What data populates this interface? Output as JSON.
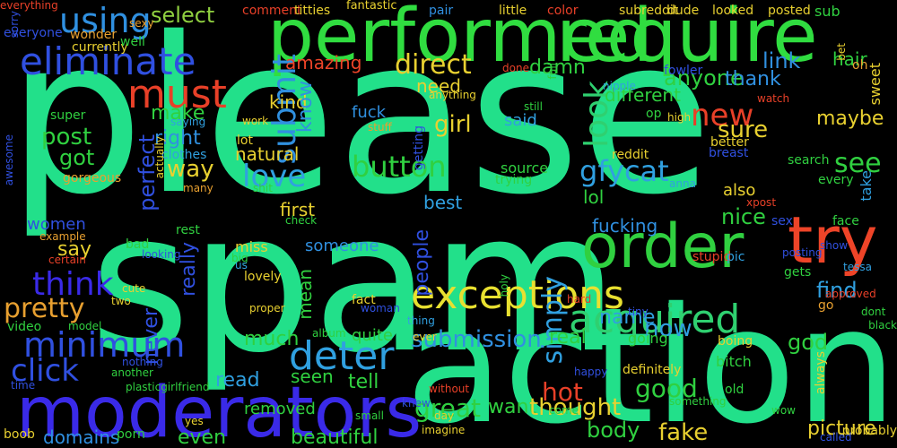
{
  "words": [
    {
      "t": "please",
      "c": "#22e08a"
    },
    {
      "t": "spam",
      "c": "#22e08a"
    },
    {
      "t": "action",
      "c": "#22e08a"
    },
    {
      "t": "performed",
      "c": "#30dd40"
    },
    {
      "t": "require",
      "c": "#30dd40"
    },
    {
      "t": "moderators",
      "c": "#3a2ae8"
    },
    {
      "t": "order",
      "c": "#30d040"
    },
    {
      "t": "try",
      "c": "#ee4428"
    },
    {
      "t": "exceptions",
      "c": "#e8e030"
    },
    {
      "t": "acquired",
      "c": "#2fd070"
    },
    {
      "t": "eliminate",
      "c": "#3050e0"
    },
    {
      "t": "using",
      "c": "#3090e0"
    },
    {
      "t": "must",
      "c": "#e84028"
    },
    {
      "t": "minimum",
      "c": "#3050e0"
    },
    {
      "t": "deter",
      "c": "#30a0e0"
    },
    {
      "t": "submit",
      "c": "#3090e0"
    },
    {
      "t": "look",
      "c": "#2fd070"
    },
    {
      "t": "button",
      "c": "#30d040"
    },
    {
      "t": "direct",
      "c": "#e8d030"
    },
    {
      "t": "love",
      "c": "#30a0e0"
    },
    {
      "t": "new",
      "c": "#e84028"
    },
    {
      "t": "see",
      "c": "#30d040"
    },
    {
      "t": "gfycat",
      "c": "#30a0e0"
    },
    {
      "t": "think",
      "c": "#3a2ae8"
    },
    {
      "t": "click",
      "c": "#3050e0"
    },
    {
      "t": "pretty",
      "c": "#e8a030"
    },
    {
      "t": "simply",
      "c": "#30a0e0"
    },
    {
      "t": "submission",
      "c": "#3090e0"
    },
    {
      "t": "select",
      "c": "#90d040"
    },
    {
      "t": "amazing",
      "c": "#ee4428"
    },
    {
      "t": "damn",
      "c": "#30d040"
    },
    {
      "t": "anyone",
      "c": "#30d040"
    },
    {
      "t": "link",
      "c": "#3090e0"
    },
    {
      "t": "thank",
      "c": "#3090e0"
    },
    {
      "t": "kind",
      "c": "#e8d030"
    },
    {
      "t": "know",
      "c": "#3090e0"
    },
    {
      "t": "need",
      "c": "#e8d030"
    },
    {
      "t": "girl",
      "c": "#e8d030"
    },
    {
      "t": "said",
      "c": "#30a0e0"
    },
    {
      "t": "fuck",
      "c": "#3090e0"
    },
    {
      "t": "sure",
      "c": "#e8d030"
    },
    {
      "t": "maybe",
      "c": "#e8d030"
    },
    {
      "t": "post",
      "c": "#30d040"
    },
    {
      "t": "make",
      "c": "#30d040"
    },
    {
      "t": "right",
      "c": "#3090e0"
    },
    {
      "t": "got",
      "c": "#30d040"
    },
    {
      "t": "way",
      "c": "#e8d030"
    },
    {
      "t": "perfect",
      "c": "#3050e0"
    },
    {
      "t": "natural",
      "c": "#e8d030"
    },
    {
      "t": "source",
      "c": "#30d040"
    },
    {
      "t": "trying",
      "c": "#30d040"
    },
    {
      "t": "also",
      "c": "#e8d030"
    },
    {
      "t": "nice",
      "c": "#30d040"
    },
    {
      "t": "lol",
      "c": "#30d040"
    },
    {
      "t": "best",
      "c": "#30a0e0"
    },
    {
      "t": "first",
      "c": "#e8d030"
    },
    {
      "t": "fucking",
      "c": "#3090e0"
    },
    {
      "t": "find",
      "c": "#30a0e0"
    },
    {
      "t": "women",
      "c": "#3050e0"
    },
    {
      "t": "say",
      "c": "#e8d030"
    },
    {
      "t": "really",
      "c": "#3050e0"
    },
    {
      "t": "someone",
      "c": "#3090e0"
    },
    {
      "t": "people",
      "c": "#3050e0"
    },
    {
      "t": "name",
      "c": "#30a0e0"
    },
    {
      "t": "now",
      "c": "#30a0e0"
    },
    {
      "t": "mean",
      "c": "#30d040"
    },
    {
      "t": "much",
      "c": "#30d040"
    },
    {
      "t": "real",
      "c": "#30d040"
    },
    {
      "t": "going",
      "c": "#30d040"
    },
    {
      "t": "quite",
      "c": "#30d040"
    },
    {
      "t": "seen",
      "c": "#30d040"
    },
    {
      "t": "read",
      "c": "#30a0e0"
    },
    {
      "t": "never",
      "c": "#3050e0"
    },
    {
      "t": "tell",
      "c": "#30d040"
    },
    {
      "t": "hot",
      "c": "#e84028"
    },
    {
      "t": "good",
      "c": "#30d040"
    },
    {
      "t": "great",
      "c": "#30d040"
    },
    {
      "t": "want",
      "c": "#30d040"
    },
    {
      "t": "thought",
      "c": "#e8d030"
    },
    {
      "t": "body",
      "c": "#30d040"
    },
    {
      "t": "fake",
      "c": "#e8d030"
    },
    {
      "t": "picture",
      "c": "#e8d030"
    },
    {
      "t": "even",
      "c": "#30d040"
    },
    {
      "t": "beautiful",
      "c": "#30d040"
    },
    {
      "t": "domains",
      "c": "#3090e0"
    },
    {
      "t": "removed",
      "c": "#30d040"
    },
    {
      "t": "god",
      "c": "#30d040"
    },
    {
      "t": "different",
      "c": "#30d040"
    },
    {
      "t": "hair",
      "c": "#30d040"
    },
    {
      "t": "pair",
      "c": "#3090e0"
    },
    {
      "t": "little",
      "c": "#e8d030"
    },
    {
      "t": "color",
      "c": "#e84028"
    },
    {
      "t": "subreddit",
      "c": "#e8d030"
    },
    {
      "t": "dude",
      "c": "#e8d030"
    },
    {
      "t": "looked",
      "c": "#e8d030"
    },
    {
      "t": "posted",
      "c": "#e8d030"
    },
    {
      "t": "sub",
      "c": "#30d040"
    },
    {
      "t": "comment",
      "c": "#e84028"
    },
    {
      "t": "titties",
      "c": "#e8d030"
    },
    {
      "t": "fantastic",
      "c": "#e8d030"
    },
    {
      "t": "everyone",
      "c": "#3050e0"
    },
    {
      "t": "wonder",
      "c": "#e8a030"
    },
    {
      "t": "currently",
      "c": "#e8d030"
    },
    {
      "t": "well",
      "c": "#30d040"
    },
    {
      "t": "sexy",
      "c": "#e8a030"
    },
    {
      "t": "sorry",
      "c": "#3050e0"
    },
    {
      "t": "done",
      "c": "#e84028"
    },
    {
      "t": "full",
      "c": "#30d040"
    },
    {
      "t": "fowler",
      "c": "#3050e0"
    },
    {
      "t": "anything",
      "c": "#e8d030"
    },
    {
      "t": "nipple",
      "c": "#30a0e0"
    },
    {
      "t": "watch",
      "c": "#e84028"
    },
    {
      "t": "oh",
      "c": "#e8a030"
    },
    {
      "t": "bet",
      "c": "#e8d030"
    },
    {
      "t": "sweet",
      "c": "#e8d030"
    },
    {
      "t": "still",
      "c": "#30d040"
    },
    {
      "t": "high",
      "c": "#e8d030"
    },
    {
      "t": "op",
      "c": "#30d040"
    },
    {
      "t": "better",
      "c": "#e8d030"
    },
    {
      "t": "breast",
      "c": "#3050e0"
    },
    {
      "t": "reddit",
      "c": "#e8d030"
    },
    {
      "t": "search",
      "c": "#30d040"
    },
    {
      "t": "every",
      "c": "#30d040"
    },
    {
      "t": "anna",
      "c": "#30a0e0"
    },
    {
      "t": "take",
      "c": "#30a0e0"
    },
    {
      "t": "super",
      "c": "#30d040"
    },
    {
      "t": "saying",
      "c": "#30a0e0"
    },
    {
      "t": "work",
      "c": "#e8d030"
    },
    {
      "t": "stuff",
      "c": "#e8a030"
    },
    {
      "t": "getting",
      "c": "#3050e0"
    },
    {
      "t": "lot",
      "c": "#e8d030"
    },
    {
      "t": "clothes",
      "c": "#30a0e0"
    },
    {
      "t": "actually",
      "c": "#e8d030"
    },
    {
      "t": "gorgeous",
      "c": "#e8a030"
    },
    {
      "t": "many",
      "c": "#e8a030"
    },
    {
      "t": "shit",
      "c": "#30d040"
    },
    {
      "t": "awesome",
      "c": "#3050e0"
    },
    {
      "t": "xpost",
      "c": "#e84028"
    },
    {
      "t": "sex",
      "c": "#3050e0"
    },
    {
      "t": "face",
      "c": "#30d040"
    },
    {
      "t": "check",
      "c": "#30d040"
    },
    {
      "t": "example",
      "c": "#e8a030"
    },
    {
      "t": "certain",
      "c": "#e84028"
    },
    {
      "t": "rest",
      "c": "#30d040"
    },
    {
      "t": "bad",
      "c": "#30d040"
    },
    {
      "t": "looking",
      "c": "#3050e0"
    },
    {
      "t": "miss",
      "c": "#e8d030"
    },
    {
      "t": "big",
      "c": "#30d040"
    },
    {
      "t": "stupid",
      "c": "#e84028"
    },
    {
      "t": "pic",
      "c": "#30a0e0"
    },
    {
      "t": "posting",
      "c": "#3050e0"
    },
    {
      "t": "show",
      "c": "#3050e0"
    },
    {
      "t": "tessa",
      "c": "#30a0e0"
    },
    {
      "t": "gets",
      "c": "#30d040"
    },
    {
      "t": "approved",
      "c": "#e84028"
    },
    {
      "t": "dont",
      "c": "#30d040"
    },
    {
      "t": "black",
      "c": "#30d040"
    },
    {
      "t": "us",
      "c": "#30a0e0"
    },
    {
      "t": "lovely",
      "c": "#e8d030"
    },
    {
      "t": "proper",
      "c": "#e8d030"
    },
    {
      "t": "holy",
      "c": "#30d040"
    },
    {
      "t": "cute",
      "c": "#e8d030"
    },
    {
      "t": "two",
      "c": "#e8d030"
    },
    {
      "t": "woman",
      "c": "#3050e0"
    },
    {
      "t": "fact",
      "c": "#e8d030"
    },
    {
      "t": "hard",
      "c": "#e84028"
    },
    {
      "t": "go",
      "c": "#e8a030"
    },
    {
      "t": "thing",
      "c": "#30a0e0"
    },
    {
      "t": "tiny",
      "c": "#3050e0"
    },
    {
      "t": "video",
      "c": "#30d040"
    },
    {
      "t": "model",
      "c": "#30d040"
    },
    {
      "t": "album",
      "c": "#30d040"
    },
    {
      "t": "ever",
      "c": "#e8d030"
    },
    {
      "t": "boing",
      "c": "#e8d030"
    },
    {
      "t": "always",
      "c": "#e8d030"
    },
    {
      "t": "nothing",
      "c": "#3050e0"
    },
    {
      "t": "another",
      "c": "#30d040"
    },
    {
      "t": "time",
      "c": "#3050e0"
    },
    {
      "t": "plasticgirlfriend",
      "c": "#30d040"
    },
    {
      "t": "without",
      "c": "#e84028"
    },
    {
      "t": "happy",
      "c": "#3050e0"
    },
    {
      "t": "definitely",
      "c": "#e8d030"
    },
    {
      "t": "something",
      "c": "#30d040"
    },
    {
      "t": "old",
      "c": "#30d040"
    },
    {
      "t": "wow",
      "c": "#30d040"
    },
    {
      "t": "bitch",
      "c": "#30d040"
    },
    {
      "t": "yes",
      "c": "#e8d030"
    },
    {
      "t": "knew",
      "c": "#3050e0"
    },
    {
      "t": "come",
      "c": "#30d040"
    },
    {
      "t": "small",
      "c": "#30d040"
    },
    {
      "t": "day",
      "c": "#e8d030"
    },
    {
      "t": "imagine",
      "c": "#e8d030"
    },
    {
      "t": "boob",
      "c": "#e8d030"
    },
    {
      "t": "porn",
      "c": "#30d040"
    },
    {
      "t": "probably",
      "c": "#e8d030"
    },
    {
      "t": "called",
      "c": "#3050e0"
    },
    {
      "t": "everything",
      "c": "#e84028"
    }
  ]
}
